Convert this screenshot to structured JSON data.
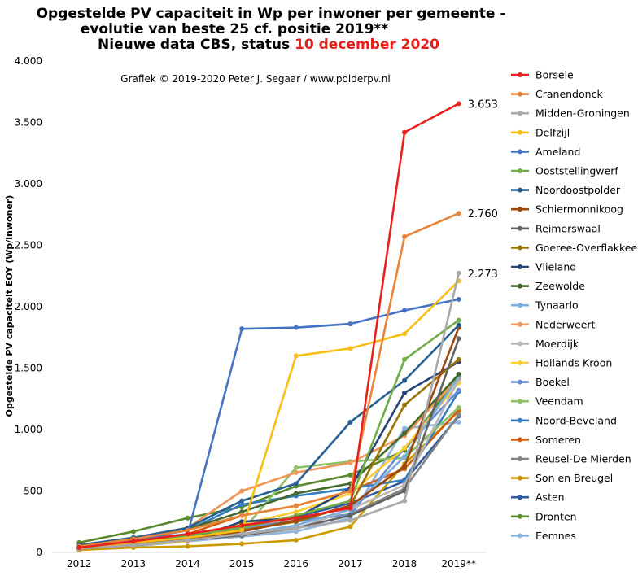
{
  "title": {
    "line1": "Opgestelde PV capaciteit in Wp per inwoner per gemeente -",
    "line2": "evolutie van beste 25 cf. positie 2019**",
    "line3_prefix": "Nieuwe data CBS, status ",
    "line3_date": "10 december 2020",
    "date_color": "#e0211d"
  },
  "credit": "Grafiek © 2019-2020 Peter J. Segaar / www.polderpv.nl",
  "chart_data": {
    "type": "line",
    "ylabel": "Opgestelde PV capaciteit EOY (Wp/inwoner)",
    "xlabel": "",
    "x": [
      "2012",
      "2013",
      "2014",
      "2015",
      "2016",
      "2017",
      "2018",
      "2019**"
    ],
    "ylim": [
      0,
      4000
    ],
    "yticks": [
      0,
      500,
      1000,
      1500,
      2000,
      2500,
      3000,
      3500,
      4000
    ],
    "ytick_labels": [
      "0",
      "500",
      "1.000",
      "1.500",
      "2.000",
      "2.500",
      "3.000",
      "3.500",
      "4.000"
    ],
    "grid": false,
    "legend_position": "right",
    "series": [
      {
        "name": "Borsele",
        "color": "#e8211d",
        "values": [
          40,
          90,
          150,
          220,
          280,
          360,
          3420,
          3653
        ],
        "label": "3.653"
      },
      {
        "name": "Cranendonck",
        "color": "#e7843a",
        "values": [
          50,
          110,
          180,
          300,
          380,
          500,
          2570,
          2760
        ],
        "label": "2.760"
      },
      {
        "name": "Midden-Groningen",
        "color": "#a9a9a9",
        "values": [
          30,
          60,
          100,
          150,
          200,
          260,
          420,
          2273
        ],
        "label": "2.273"
      },
      {
        "name": "Delfzijl",
        "color": "#f7be16",
        "values": [
          40,
          80,
          120,
          180,
          1600,
          1660,
          1780,
          2210
        ]
      },
      {
        "name": "Ameland",
        "color": "#4472c4",
        "values": [
          50,
          100,
          150,
          1820,
          1830,
          1860,
          1970,
          2060
        ]
      },
      {
        "name": "Ooststellingwerf",
        "color": "#70ad47",
        "values": [
          40,
          90,
          140,
          200,
          300,
          420,
          1570,
          1890
        ]
      },
      {
        "name": "Noordoostpolder",
        "color": "#265f91",
        "values": [
          60,
          120,
          200,
          420,
          560,
          1060,
          1400,
          1850
        ]
      },
      {
        "name": "Schiermonnikoog",
        "color": "#9e480e",
        "values": [
          30,
          70,
          110,
          170,
          260,
          380,
          700,
          1830
        ]
      },
      {
        "name": "Reimerswaal",
        "color": "#636363",
        "values": [
          30,
          60,
          100,
          140,
          200,
          300,
          500,
          1740
        ]
      },
      {
        "name": "Goeree-Overflakkee",
        "color": "#997300",
        "values": [
          40,
          80,
          120,
          180,
          250,
          380,
          1200,
          1570
        ]
      },
      {
        "name": "Vlieland",
        "color": "#264478",
        "values": [
          30,
          60,
          100,
          250,
          280,
          520,
          1300,
          1550
        ]
      },
      {
        "name": "Zeewolde",
        "color": "#43682b",
        "values": [
          60,
          120,
          190,
          330,
          480,
          560,
          970,
          1450
        ]
      },
      {
        "name": "Tynaarlo",
        "color": "#7cafdd",
        "values": [
          30,
          60,
          100,
          150,
          220,
          350,
          780,
          1430
        ]
      },
      {
        "name": "Nederweert",
        "color": "#f1975a",
        "values": [
          40,
          100,
          200,
          500,
          650,
          730,
          950,
          1420
        ]
      },
      {
        "name": "Moerdijk",
        "color": "#b7b7b7",
        "values": [
          30,
          60,
          100,
          140,
          190,
          350,
          550,
          1410
        ]
      },
      {
        "name": "Hollands Kroon",
        "color": "#ffcd33",
        "values": [
          30,
          60,
          90,
          230,
          330,
          480,
          850,
          1380
        ]
      },
      {
        "name": "Boekel",
        "color": "#698ed0",
        "values": [
          30,
          70,
          130,
          200,
          250,
          310,
          850,
          1320
        ]
      },
      {
        "name": "Veendam",
        "color": "#8cc168",
        "values": [
          30,
          60,
          100,
          170,
          690,
          740,
          770,
          1180
        ]
      },
      {
        "name": "Noord-Beveland",
        "color": "#327dc2",
        "values": [
          50,
          100,
          180,
          390,
          460,
          520,
          590,
          1310
        ]
      },
      {
        "name": "Someren",
        "color": "#d26012",
        "values": [
          30,
          80,
          150,
          300,
          380,
          500,
          680,
          1160
        ]
      },
      {
        "name": "Reusel-De Mierden",
        "color": "#848484",
        "values": [
          40,
          90,
          150,
          200,
          260,
          310,
          520,
          1120
        ]
      },
      {
        "name": "Son en Breugel",
        "color": "#cc9a00",
        "values": [
          20,
          40,
          50,
          70,
          100,
          210,
          720,
          1150
        ]
      },
      {
        "name": "Asten",
        "color": "#335aa1",
        "values": [
          40,
          80,
          140,
          220,
          290,
          400,
          580,
          1110
        ]
      },
      {
        "name": "Dronten",
        "color": "#5a8a2e",
        "values": [
          80,
          170,
          280,
          370,
          540,
          630,
          830,
          1450
        ]
      },
      {
        "name": "Eemnes",
        "color": "#8fb4de",
        "values": [
          20,
          50,
          90,
          130,
          170,
          280,
          1010,
          1060
        ]
      }
    ]
  }
}
